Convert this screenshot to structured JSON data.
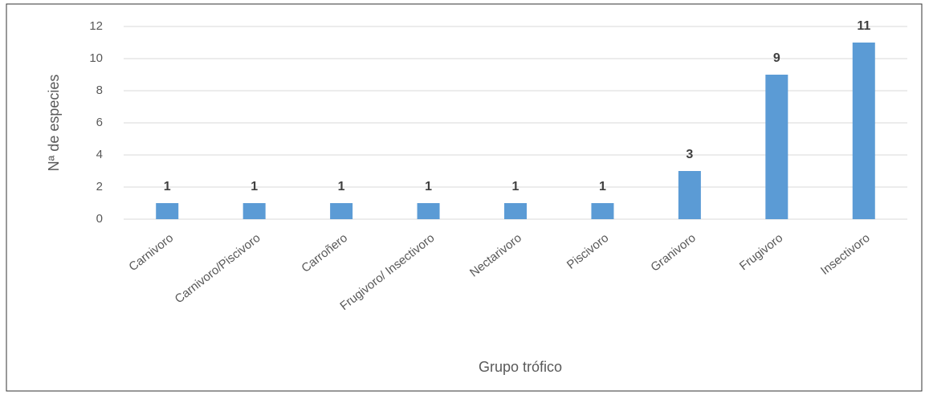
{
  "chart_data": {
    "type": "bar",
    "categories": [
      "Carnivoro",
      "Carnivoro/Piscivoro",
      "Carroñero",
      "Frugivoro/ Insectivoro",
      "Nectarivoro",
      "Piscivoro",
      "Granivoro",
      "Frugivoro",
      "Insectivoro"
    ],
    "values": [
      1,
      1,
      1,
      1,
      1,
      1,
      3,
      9,
      11
    ],
    "color": "#5b9bd5",
    "xlabel": "Grupo trófico",
    "ylabel": "Nª de especies",
    "ylim": [
      0,
      12
    ],
    "yticks": [
      0,
      2,
      4,
      6,
      8,
      10,
      12
    ],
    "grid": true,
    "data_labels": true
  }
}
